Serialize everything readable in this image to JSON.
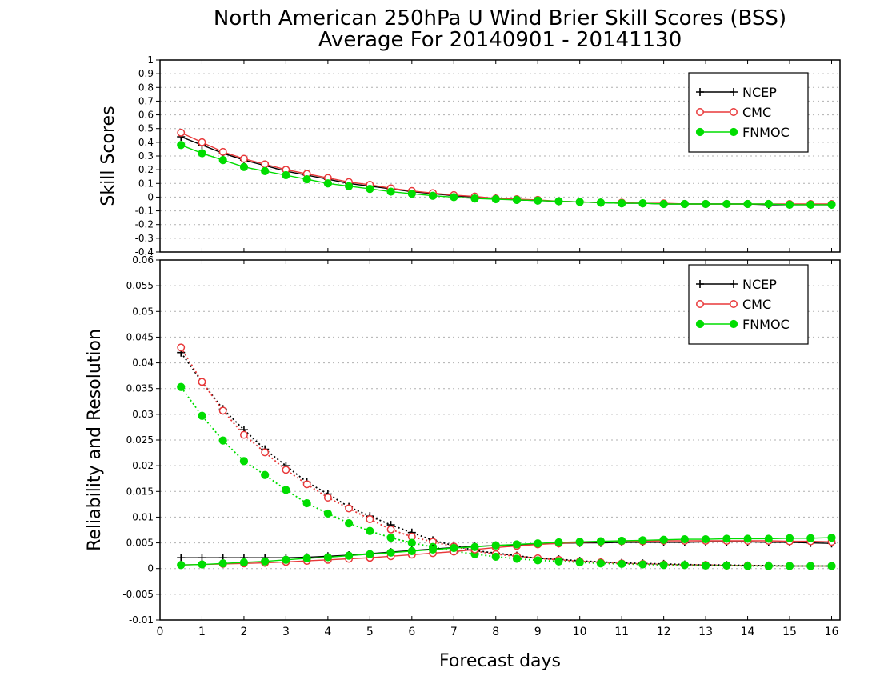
{
  "title": {
    "line1": "North American 250hPa U Wind Brier Skill Scores (BSS)",
    "line2": "Average For 20140901 - 20141130"
  },
  "colors": {
    "NCEP": "#000000",
    "CMC": "#e8393a",
    "FNMOC": "#00dd00",
    "grid": "#b0b0b0"
  },
  "chart_data": [
    {
      "type": "line",
      "ylabel": "Skill Scores",
      "xlim": [
        0,
        16.2
      ],
      "ylim": [
        -0.4,
        1.0
      ],
      "yticks": [
        -0.4,
        -0.3,
        -0.2,
        -0.1,
        0,
        0.1,
        0.2,
        0.3,
        0.4,
        0.5,
        0.6,
        0.7,
        0.8,
        0.9,
        1
      ],
      "ytick_labels": [
        "-0.4",
        "-0.3",
        "-0.2",
        "-0.1",
        "0",
        "0.1",
        "0.2",
        "0.3",
        "0.4",
        "0.5",
        "0.6",
        "0.7",
        "0.8",
        "0.9",
        "1"
      ],
      "grid": true,
      "legend_position": "top-right",
      "x": [
        0.5,
        1,
        1.5,
        2,
        2.5,
        3,
        3.5,
        4,
        4.5,
        5,
        5.5,
        6,
        6.5,
        7,
        7.5,
        8,
        8.5,
        9,
        9.5,
        10,
        10.5,
        11,
        11.5,
        12,
        12.5,
        13,
        13.5,
        14,
        14.5,
        15,
        15.5,
        16
      ],
      "series": [
        {
          "name": "NCEP",
          "marker": "plus",
          "style": "solid",
          "values": [
            0.44,
            0.38,
            0.32,
            0.27,
            0.23,
            0.19,
            0.16,
            0.13,
            0.1,
            0.08,
            0.06,
            0.04,
            0.025,
            0.01,
            0.0,
            -0.01,
            -0.02,
            -0.025,
            -0.03,
            -0.035,
            -0.04,
            -0.045,
            -0.045,
            -0.05,
            -0.05,
            -0.05,
            -0.05,
            -0.05,
            -0.055,
            -0.055,
            -0.055,
            -0.055
          ]
        },
        {
          "name": "CMC",
          "marker": "open-circle",
          "style": "solid",
          "values": [
            0.47,
            0.4,
            0.33,
            0.28,
            0.24,
            0.2,
            0.17,
            0.14,
            0.11,
            0.09,
            0.065,
            0.045,
            0.03,
            0.015,
            0.005,
            -0.01,
            -0.015,
            -0.02,
            -0.03,
            -0.035,
            -0.04,
            -0.04,
            -0.045,
            -0.045,
            -0.05,
            -0.05,
            -0.05,
            -0.05,
            -0.05,
            -0.05,
            -0.05,
            -0.05
          ]
        },
        {
          "name": "FNMOC",
          "marker": "filled-circle",
          "style": "solid",
          "values": [
            0.38,
            0.32,
            0.27,
            0.22,
            0.19,
            0.16,
            0.13,
            0.1,
            0.08,
            0.06,
            0.04,
            0.025,
            0.01,
            0.0,
            -0.01,
            -0.015,
            -0.02,
            -0.025,
            -0.03,
            -0.035,
            -0.04,
            -0.045,
            -0.045,
            -0.05,
            -0.05,
            -0.05,
            -0.05,
            -0.05,
            -0.05,
            -0.055,
            -0.055,
            -0.055
          ]
        }
      ],
      "legend": [
        "NCEP",
        "CMC",
        "FNMOC"
      ]
    },
    {
      "type": "line",
      "ylabel": "Reliability and Resolution",
      "xlabel": "Forecast days",
      "xlim": [
        0,
        16.2
      ],
      "ylim": [
        -0.01,
        0.06
      ],
      "xticks": [
        0,
        1,
        2,
        3,
        4,
        5,
        6,
        7,
        8,
        9,
        10,
        11,
        12,
        13,
        14,
        15,
        16
      ],
      "xtick_labels": [
        "0",
        "1",
        "2",
        "3",
        "4",
        "5",
        "6",
        "7",
        "8",
        "9",
        "10",
        "11",
        "12",
        "13",
        "14",
        "15",
        "16"
      ],
      "yticks": [
        -0.01,
        -0.005,
        0,
        0.005,
        0.01,
        0.015,
        0.02,
        0.025,
        0.03,
        0.035,
        0.04,
        0.045,
        0.05,
        0.055,
        0.06
      ],
      "ytick_labels": [
        "-0.01",
        "-0.005",
        "0",
        "0.005",
        "0.01",
        "0.015",
        "0.02",
        "0.025",
        "0.03",
        "0.035",
        "0.04",
        "0.045",
        "0.05",
        "0.055",
        "0.06"
      ],
      "grid": true,
      "legend_position": "top-right",
      "x": [
        0.5,
        1,
        1.5,
        2,
        2.5,
        3,
        3.5,
        4,
        4.5,
        5,
        5.5,
        6,
        6.5,
        7,
        7.5,
        8,
        8.5,
        9,
        9.5,
        10,
        10.5,
        11,
        11.5,
        12,
        12.5,
        13,
        13.5,
        14,
        14.5,
        15,
        15.5,
        16
      ],
      "series": [
        {
          "name": "NCEP",
          "marker": "plus",
          "style": "dotted",
          "component": "reliability",
          "values": [
            0.042,
            0.0363,
            0.031,
            0.027,
            0.0232,
            0.02,
            0.0168,
            0.0145,
            0.012,
            0.0102,
            0.0085,
            0.007,
            0.0055,
            0.0045,
            0.0035,
            0.003,
            0.0025,
            0.002,
            0.0018,
            0.0015,
            0.0013,
            0.0011,
            0.001,
            0.0009,
            0.0008,
            0.0007,
            0.0007,
            0.0006,
            0.0006,
            0.0005,
            0.0005,
            0.0005
          ]
        },
        {
          "name": "CMC",
          "marker": "open-circle",
          "style": "dotted",
          "component": "reliability",
          "values": [
            0.043,
            0.0363,
            0.0307,
            0.026,
            0.0226,
            0.0192,
            0.0164,
            0.0138,
            0.0117,
            0.0096,
            0.0076,
            0.0062,
            0.0052,
            0.0043,
            0.0034,
            0.0028,
            0.0024,
            0.002,
            0.0017,
            0.0014,
            0.0012,
            0.001,
            0.0009,
            0.0008,
            0.0007,
            0.0007,
            0.0006,
            0.0006,
            0.0005,
            0.0005,
            0.0005,
            0.0005
          ]
        },
        {
          "name": "FNMOC",
          "marker": "filled-circle",
          "style": "dotted",
          "component": "reliability",
          "values": [
            0.0353,
            0.0297,
            0.0249,
            0.0209,
            0.0182,
            0.0153,
            0.0127,
            0.0107,
            0.0088,
            0.0073,
            0.006,
            0.005,
            0.0042,
            0.0034,
            0.0028,
            0.0023,
            0.0019,
            0.0016,
            0.0014,
            0.0012,
            0.001,
            0.0009,
            0.0008,
            0.0007,
            0.0007,
            0.0006,
            0.0006,
            0.0005,
            0.0005,
            0.0005,
            0.0005,
            0.0005
          ]
        },
        {
          "name": "NCEP",
          "marker": "plus",
          "style": "solid",
          "component": "resolution",
          "values": [
            0.0021,
            0.0021,
            0.0021,
            0.0021,
            0.0021,
            0.0021,
            0.0022,
            0.0024,
            0.0026,
            0.0029,
            0.0032,
            0.0035,
            0.0038,
            0.0041,
            0.0043,
            0.0045,
            0.0046,
            0.0048,
            0.0049,
            0.005,
            0.005,
            0.0051,
            0.0051,
            0.0051,
            0.0051,
            0.0052,
            0.0052,
            0.0052,
            0.0051,
            0.0051,
            0.005,
            0.0049
          ]
        },
        {
          "name": "CMC",
          "marker": "open-circle",
          "style": "solid",
          "component": "resolution",
          "values": [
            0.0007,
            0.0008,
            0.0009,
            0.001,
            0.0011,
            0.0013,
            0.0015,
            0.0017,
            0.0019,
            0.0021,
            0.0024,
            0.0027,
            0.003,
            0.0033,
            0.0037,
            0.0041,
            0.0044,
            0.0047,
            0.0049,
            0.0051,
            0.0052,
            0.0053,
            0.0053,
            0.0054,
            0.0054,
            0.0054,
            0.0054,
            0.0054,
            0.0054,
            0.0053,
            0.0053,
            0.0052
          ]
        },
        {
          "name": "FNMOC",
          "marker": "filled-circle",
          "style": "solid",
          "component": "resolution",
          "values": [
            0.0007,
            0.0008,
            0.001,
            0.0012,
            0.0014,
            0.0017,
            0.002,
            0.0022,
            0.0025,
            0.0028,
            0.0031,
            0.0034,
            0.0037,
            0.004,
            0.0042,
            0.0045,
            0.0047,
            0.0049,
            0.0051,
            0.0052,
            0.0053,
            0.0054,
            0.0055,
            0.0056,
            0.0057,
            0.0057,
            0.0058,
            0.0058,
            0.0058,
            0.0059,
            0.0059,
            0.006
          ]
        }
      ],
      "legend": [
        "NCEP",
        "CMC",
        "FNMOC"
      ]
    }
  ]
}
